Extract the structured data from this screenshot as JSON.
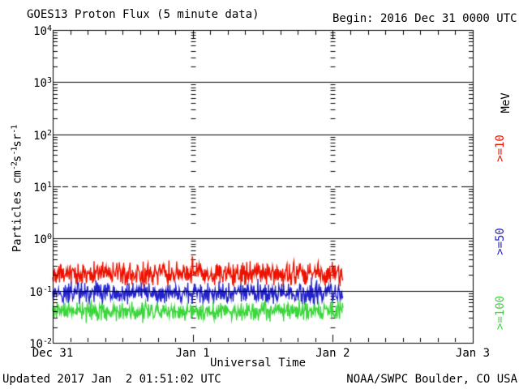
{
  "footer": {
    "updated": "Updated 2017 Jan  2 01:51:02 UTC",
    "source": "NOAA/SWPC Boulder, CO USA"
  },
  "chart_data": {
    "type": "line",
    "title": "GOES13 Proton Flux (5 minute data)",
    "begin_label": "Begin: 2016 Dec 31 0000 UTC",
    "xlabel": "Universal Time",
    "ylabel_parts": [
      {
        "text": "Particles cm"
      },
      {
        "text": "-2",
        "sup": true
      },
      {
        "text": "s"
      },
      {
        "text": "-1",
        "sup": true
      },
      {
        "text": "sr"
      },
      {
        "text": "-1",
        "sup": true
      }
    ],
    "units_label": "MeV",
    "y_scale": "log",
    "ylim": [
      0.01,
      10000
    ],
    "yticks": [
      {
        "base": "10",
        "exp": "4"
      },
      {
        "base": "10",
        "exp": "3"
      },
      {
        "base": "10",
        "exp": "2"
      },
      {
        "base": "10",
        "exp": "1"
      },
      {
        "base": "10",
        "exp": "0"
      },
      {
        "base": "10",
        "exp": "-1"
      },
      {
        "base": "10",
        "exp": "-2"
      }
    ],
    "xticks": [
      {
        "label": "Dec 31",
        "day": 0
      },
      {
        "label": "Jan 1",
        "day": 1
      },
      {
        "label": "Jan 2",
        "day": 2
      },
      {
        "label": "Jan 3",
        "day": 3
      }
    ],
    "x_minor_tick_hours": 3,
    "grid": {
      "solid_decades": [
        3,
        2,
        0,
        -1
      ],
      "dashed_decades": [
        1
      ],
      "interior_day_tick_columns": [
        1,
        2
      ]
    },
    "sample_interval_minutes": 5,
    "data_start_day": 0,
    "data_end_day": 2.073,
    "noise_seed": 20161231,
    "series": [
      {
        "name": "Proton flux >=10 MeV",
        "label": ">=10",
        "color": "#ee1100",
        "approx_mean_flux": 0.21,
        "approx_flux_range": [
          0.11,
          0.45
        ],
        "log10_mean": -0.68,
        "log10_spread": 0.26,
        "spike_prob": 0.05,
        "spike_log10_max": 0.18,
        "spike_dir": 1
      },
      {
        "name": "Proton flux >=50 MeV",
        "label": ">=50",
        "color": "#2222cc",
        "approx_mean_flux": 0.09,
        "approx_flux_range": [
          0.05,
          0.2
        ],
        "log10_mean": -1.05,
        "log10_spread": 0.24,
        "spike_prob": 0.04,
        "spike_log10_max": 0.2,
        "spike_dir": 1
      },
      {
        "name": "Proton flux >=100 MeV",
        "label": ">=100",
        "color": "#3ad63a",
        "approx_mean_flux": 0.042,
        "approx_flux_range": [
          0.024,
          0.07
        ],
        "log10_mean": -1.38,
        "log10_spread": 0.22,
        "spike_prob": 0.04,
        "spike_log10_max": 0.14,
        "spike_dir": -1,
        "log10_floor": -1.62
      }
    ]
  }
}
